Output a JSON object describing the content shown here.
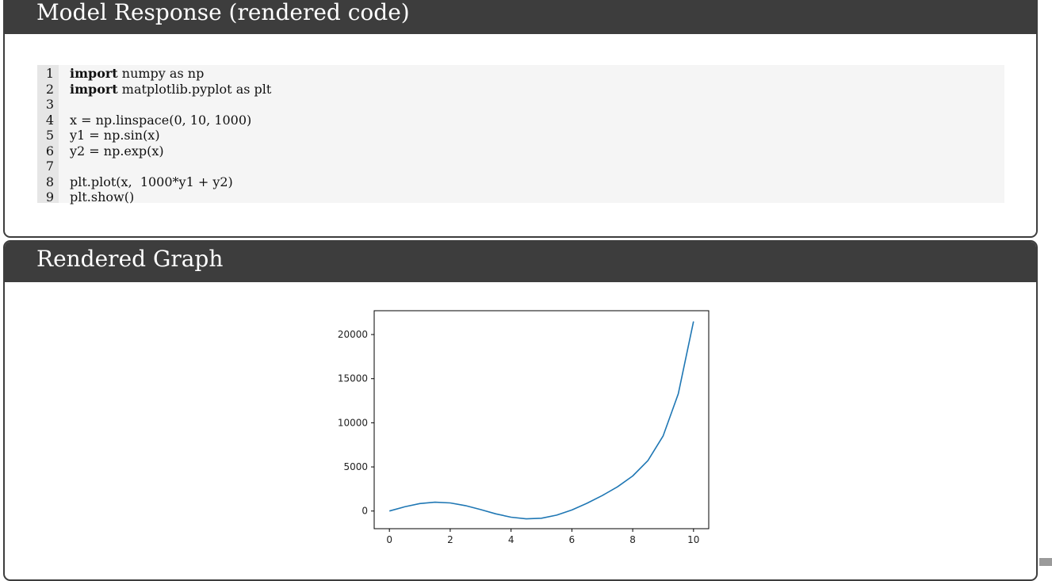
{
  "panels": {
    "code_title": "Model Response (rendered code)",
    "graph_title": "Rendered Graph"
  },
  "code": {
    "lines": [
      {
        "num": "1",
        "keyword": "import",
        "text": " numpy as np"
      },
      {
        "num": "2",
        "keyword": "import",
        "text": " matplotlib.pyplot as plt"
      },
      {
        "num": "3",
        "keyword": "",
        "text": ""
      },
      {
        "num": "4",
        "keyword": "",
        "text": "x = np.linspace(0, 10, 1000)"
      },
      {
        "num": "5",
        "keyword": "",
        "text": "y1 = np.sin(x)"
      },
      {
        "num": "6",
        "keyword": "",
        "text": "y2 = np.exp(x)"
      },
      {
        "num": "7",
        "keyword": "",
        "text": ""
      },
      {
        "num": "8",
        "keyword": "",
        "text": "plt.plot(x,  1000*y1 + y2)"
      },
      {
        "num": "9",
        "keyword": "",
        "text": "plt.show()"
      }
    ]
  },
  "chart_data": {
    "type": "line",
    "title": "",
    "xlabel": "",
    "ylabel": "",
    "xlim": [
      -0.5,
      10.5
    ],
    "ylim": [
      -2000,
      22700
    ],
    "xticks": [
      0,
      2,
      4,
      6,
      8,
      10
    ],
    "yticks": [
      0,
      5000,
      10000,
      15000,
      20000
    ],
    "grid": false,
    "series": [
      {
        "color": "#1f77b4",
        "x": [
          0,
          0.5,
          1,
          1.5,
          2,
          2.5,
          3,
          3.5,
          4,
          4.5,
          5,
          5.5,
          6,
          6.5,
          7,
          7.5,
          8,
          8.5,
          9,
          9.5,
          10
        ],
        "y": [
          1,
          481,
          844,
          1002,
          917,
          611,
          161,
          -318,
          -702,
          -888,
          -811,
          -461,
          124,
          881,
          1754,
          2746,
          3970,
          5713,
          8515,
          13287,
          21482
        ]
      }
    ]
  }
}
